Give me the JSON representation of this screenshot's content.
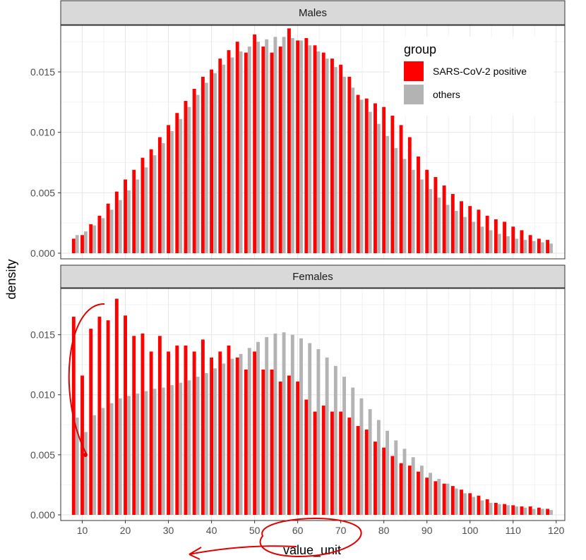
{
  "chart_data": {
    "type": "bar",
    "xlabel": "value_unit",
    "ylabel": "density",
    "x_ticks": [
      10,
      20,
      30,
      40,
      50,
      60,
      70,
      80,
      90,
      100,
      110,
      120
    ],
    "xlim": [
      5,
      122
    ],
    "ylim": [
      0,
      0.0185
    ],
    "y_ticks": [
      "0.000",
      "0.005",
      "0.010",
      "0.015"
    ],
    "y_tick_values": [
      0,
      0.005,
      0.01,
      0.015
    ],
    "grid": true,
    "legend": {
      "title": "group",
      "position": "top-right",
      "items": [
        {
          "label": "SARS-CoV-2 positive",
          "color": "#ff0000"
        },
        {
          "label": "others",
          "color": "#b3b3b3"
        }
      ]
    },
    "x": [
      8.4,
      10.4,
      12.4,
      14.4,
      16.4,
      18.4,
      20.4,
      22.4,
      24.4,
      26.4,
      28.4,
      30.4,
      32.4,
      34.4,
      36.4,
      38.4,
      40.4,
      42.4,
      44.4,
      46.4,
      48.4,
      50.4,
      52.4,
      54.4,
      56.4,
      58.4,
      60.4,
      62.4,
      64.4,
      66.4,
      68.4,
      70.4,
      72.4,
      74.4,
      76.4,
      78.4,
      80.4,
      82.4,
      84.4,
      86.4,
      88.4,
      90.4,
      92.4,
      94.4,
      96.4,
      98.4,
      100.4,
      102.4,
      104.4,
      106.4,
      108.4,
      110.4,
      112.4,
      114.4,
      116.4,
      118.4
    ],
    "panels": [
      {
        "label": "Males",
        "series": [
          {
            "name": "SARS-CoV-2 positive",
            "color": "#ff0000",
            "values": [
              0.0012,
              0.0015,
              0.0024,
              0.0031,
              0.0041,
              0.0051,
              0.0061,
              0.0069,
              0.0079,
              0.0086,
              0.0096,
              0.0106,
              0.0116,
              0.0126,
              0.0136,
              0.0146,
              0.0152,
              0.0161,
              0.0168,
              0.0175,
              0.0166,
              0.0181,
              0.0171,
              0.0166,
              0.0171,
              0.0186,
              0.0176,
              0.0178,
              0.0172,
              0.0166,
              0.0161,
              0.0156,
              0.0146,
              0.0131,
              0.0128,
              0.0124,
              0.0121,
              0.0116,
              0.0106,
              0.0096,
              0.008,
              0.0069,
              0.0063,
              0.0056,
              0.0049,
              0.0043,
              0.0039,
              0.0036,
              0.0031,
              0.0028,
              0.0026,
              0.0022,
              0.0019,
              0.0015,
              0.0012,
              0.0011
            ]
          },
          {
            "name": "others",
            "color": "#b3b3b3",
            "values": [
              0.0015,
              0.0018,
              0.0023,
              0.0029,
              0.0036,
              0.0044,
              0.0052,
              0.0061,
              0.0071,
              0.0081,
              0.0091,
              0.0101,
              0.0111,
              0.0121,
              0.0131,
              0.0141,
              0.0149,
              0.0156,
              0.0162,
              0.0167,
              0.0171,
              0.0175,
              0.0177,
              0.0179,
              0.0179,
              0.0178,
              0.0176,
              0.0172,
              0.0167,
              0.0161,
              0.0154,
              0.0146,
              0.0137,
              0.0127,
              0.0117,
              0.0107,
              0.0097,
              0.0087,
              0.0078,
              0.0069,
              0.0061,
              0.0053,
              0.0046,
              0.004,
              0.0035,
              0.003,
              0.0026,
              0.0022,
              0.0019,
              0.0016,
              0.0014,
              0.0012,
              0.0011,
              0.001,
              0.0009,
              0.0008
            ]
          }
        ]
      },
      {
        "label": "Females",
        "series": [
          {
            "name": "SARS-CoV-2 positive",
            "color": "#ff0000",
            "values": [
              0.0165,
              0.0116,
              0.0155,
              0.0165,
              0.0162,
              0.018,
              0.0166,
              0.0149,
              0.0151,
              0.0136,
              0.0149,
              0.0136,
              0.0141,
              0.0141,
              0.0136,
              0.0146,
              0.0131,
              0.0136,
              0.0141,
              0.0131,
              0.0121,
              0.0136,
              0.0121,
              0.0121,
              0.0111,
              0.0116,
              0.0111,
              0.0096,
              0.0086,
              0.0091,
              0.0086,
              0.0086,
              0.0081,
              0.0074,
              0.0071,
              0.0061,
              0.0056,
              0.0049,
              0.0043,
              0.0041,
              0.0036,
              0.0031,
              0.0028,
              0.0026,
              0.0024,
              0.0021,
              0.0018,
              0.0016,
              0.0013,
              0.001,
              0.0009,
              0.0008,
              0.0007,
              0.0007,
              0.0006,
              0.0005
            ]
          },
          {
            "name": "others",
            "color": "#b3b3b3",
            "values": [
              0.0081,
              0.0069,
              0.0083,
              0.0089,
              0.0093,
              0.0097,
              0.0099,
              0.0101,
              0.0103,
              0.0105,
              0.0106,
              0.0108,
              0.011,
              0.0112,
              0.0115,
              0.0118,
              0.0122,
              0.0126,
              0.013,
              0.0134,
              0.0139,
              0.0144,
              0.0148,
              0.0151,
              0.0152,
              0.015,
              0.0147,
              0.0143,
              0.0138,
              0.0131,
              0.0124,
              0.0115,
              0.0106,
              0.0097,
              0.0088,
              0.0079,
              0.007,
              0.0062,
              0.0055,
              0.0048,
              0.0041,
              0.0035,
              0.003,
              0.0026,
              0.0022,
              0.0018,
              0.0015,
              0.0012,
              0.001,
              0.0009,
              0.0008,
              0.0007,
              0.0006,
              0.0005,
              0.0005,
              0.0004
            ]
          }
        ]
      }
    ]
  }
}
